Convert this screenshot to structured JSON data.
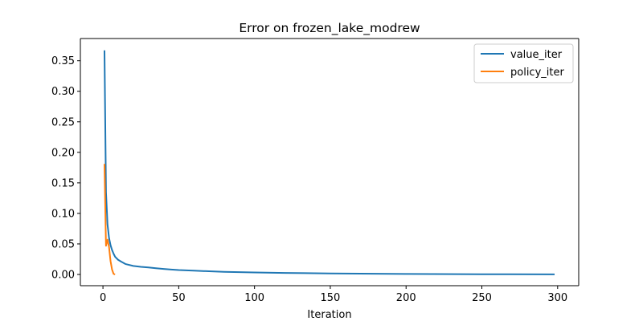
{
  "chart_data": {
    "type": "line",
    "title": "Error on frozen_lake_modrew",
    "xlabel": "Iteration",
    "ylabel": "",
    "xlim": [
      -14.9,
      313.9
    ],
    "ylim": [
      -0.0184,
      0.3864
    ],
    "xticks": [
      0,
      50,
      100,
      150,
      200,
      250,
      300
    ],
    "yticks": [
      0.0,
      0.05,
      0.1,
      0.15,
      0.2,
      0.25,
      0.3,
      0.35
    ],
    "ytick_labels": [
      "0.00",
      "0.05",
      "0.10",
      "0.15",
      "0.20",
      "0.25",
      "0.30",
      "0.35"
    ],
    "grid": false,
    "legend_position": "top-right",
    "series": [
      {
        "name": "value_iter",
        "color": "#1f77b4",
        "x": [
          1,
          2,
          3,
          4,
          5,
          6,
          7,
          8,
          10,
          12,
          15,
          20,
          25,
          30,
          35,
          40,
          45,
          50,
          60,
          70,
          80,
          100,
          120,
          150,
          200,
          250,
          298
        ],
        "y": [
          0.367,
          0.135,
          0.082,
          0.06,
          0.048,
          0.04,
          0.034,
          0.029,
          0.024,
          0.021,
          0.017,
          0.014,
          0.0125,
          0.0115,
          0.0102,
          0.009,
          0.008,
          0.0072,
          0.0062,
          0.0052,
          0.0043,
          0.0033,
          0.0025,
          0.0017,
          0.0009,
          0.0004,
          0.0002
        ]
      },
      {
        "name": "policy_iter",
        "color": "#ff7f0e",
        "x": [
          1,
          2,
          3,
          4,
          5,
          6,
          7,
          8
        ],
        "y": [
          0.181,
          0.047,
          0.057,
          0.045,
          0.022,
          0.008,
          0.001,
          0.0
        ]
      }
    ]
  }
}
